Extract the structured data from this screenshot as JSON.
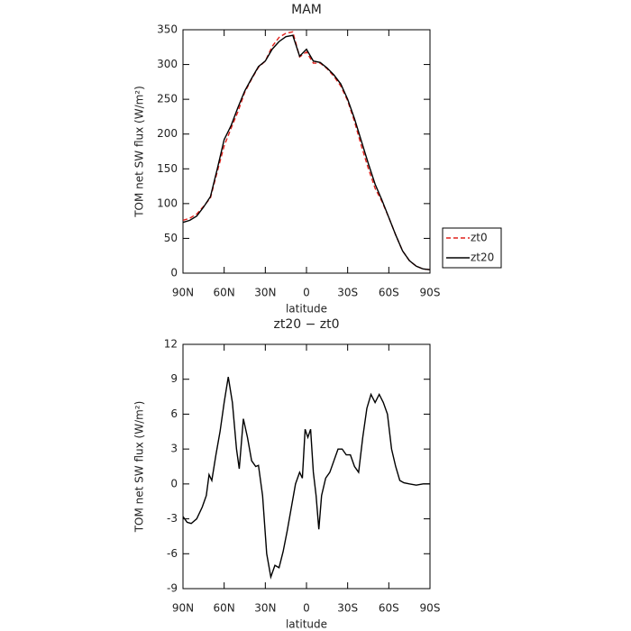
{
  "chart_data": [
    {
      "type": "line",
      "title": "MAM",
      "xlabel": "latitude",
      "ylabel": "TOM net SW flux (W/m²)",
      "xlim": [
        90,
        -90
      ],
      "xticks": [
        {
          "value": 90,
          "label": "90N"
        },
        {
          "value": 60,
          "label": "60N"
        },
        {
          "value": 30,
          "label": "30N"
        },
        0,
        {
          "value": -30,
          "label": "30S"
        },
        {
          "value": -60,
          "label": "60S"
        },
        {
          "value": -90,
          "label": "90S"
        }
      ],
      "ylim": [
        0,
        350
      ],
      "yticks": [
        0,
        50,
        100,
        150,
        200,
        250,
        300,
        350
      ],
      "legend": "right",
      "x": [
        90,
        85,
        80,
        75,
        70,
        65,
        60,
        55,
        50,
        45,
        40,
        35,
        30,
        25,
        20,
        15,
        10,
        5,
        0,
        -5,
        -10,
        -15,
        -20,
        -25,
        -30,
        -35,
        -40,
        -45,
        -50,
        -55,
        -60,
        -65,
        -70,
        -75,
        -80,
        -85,
        -90
      ],
      "series": [
        {
          "name": "zt0",
          "color": "#e0201b",
          "dash": true,
          "values": [
            76,
            79,
            85,
            96,
            108,
            146,
            183,
            208,
            232,
            260,
            279,
            296,
            305,
            326,
            339,
            345,
            347,
            311,
            318,
            302,
            302,
            294,
            283,
            269,
            248,
            218,
            183,
            151,
            122,
            103,
            80,
            55,
            32,
            18,
            10,
            6,
            5
          ]
        },
        {
          "name": "zt20",
          "color": "#000000",
          "dash": false,
          "values": [
            73,
            76,
            82,
            95,
            110,
            150,
            192,
            212,
            238,
            262,
            280,
            297,
            305,
            322,
            333,
            340,
            342,
            312,
            322,
            305,
            303,
            295,
            285,
            272,
            250,
            222,
            190,
            158,
            128,
            105,
            80,
            55,
            32,
            18,
            10,
            6,
            5
          ]
        }
      ]
    },
    {
      "type": "line",
      "title": "zt20 − zt0",
      "xlabel": "latitude",
      "ylabel": "TOM net SW flux (W/m²)",
      "xlim": [
        90,
        -90
      ],
      "xticks": [
        {
          "value": 90,
          "label": "90N"
        },
        {
          "value": 60,
          "label": "60N"
        },
        {
          "value": 30,
          "label": "30N"
        },
        0,
        {
          "value": -30,
          "label": "30S"
        },
        {
          "value": -60,
          "label": "60S"
        },
        {
          "value": -90,
          "label": "90S"
        }
      ],
      "ylim": [
        -9,
        12
      ],
      "yticks": [
        -9,
        -6,
        -3,
        0,
        3,
        6,
        9,
        12
      ],
      "x": [
        90,
        87,
        84,
        80,
        76,
        73,
        71,
        69,
        66,
        63,
        60,
        57,
        54,
        51,
        49,
        46,
        43,
        40,
        37,
        35,
        32,
        29,
        26,
        23,
        20,
        17,
        14,
        11,
        8,
        5,
        3,
        1,
        -1,
        -3,
        -5,
        -7,
        -9,
        -11,
        -14,
        -17,
        -20,
        -23,
        -26,
        -29,
        -32,
        -35,
        -38,
        -41,
        -44,
        -47,
        -50,
        -53,
        -56,
        -59,
        -62,
        -65,
        -68,
        -71,
        -75,
        -80,
        -85,
        -90
      ],
      "series": [
        {
          "color": "#000000",
          "values": [
            -2.8,
            -3.3,
            -3.4,
            -3.0,
            -2.0,
            -1.0,
            0.8,
            0.3,
            2.5,
            4.5,
            7,
            9.2,
            7.0,
            3.0,
            1.3,
            5.6,
            4.0,
            2.0,
            1.5,
            1.6,
            -1.0,
            -6.0,
            -8.0,
            -7.0,
            -7.2,
            -5.8,
            -4.0,
            -2.0,
            0.0,
            1.0,
            0.5,
            4.7,
            4.0,
            4.7,
            1.0,
            -1.0,
            -3.9,
            -1.0,
            0.5,
            1.0,
            2.0,
            3.0,
            3.0,
            2.5,
            2.5,
            1.5,
            1.0,
            4.0,
            6.5,
            7.7,
            7.0,
            7.7,
            7.0,
            6.0,
            3.0,
            1.5,
            0.3,
            0.1,
            0.0,
            -0.1,
            0.0,
            0.0
          ]
        }
      ]
    }
  ]
}
